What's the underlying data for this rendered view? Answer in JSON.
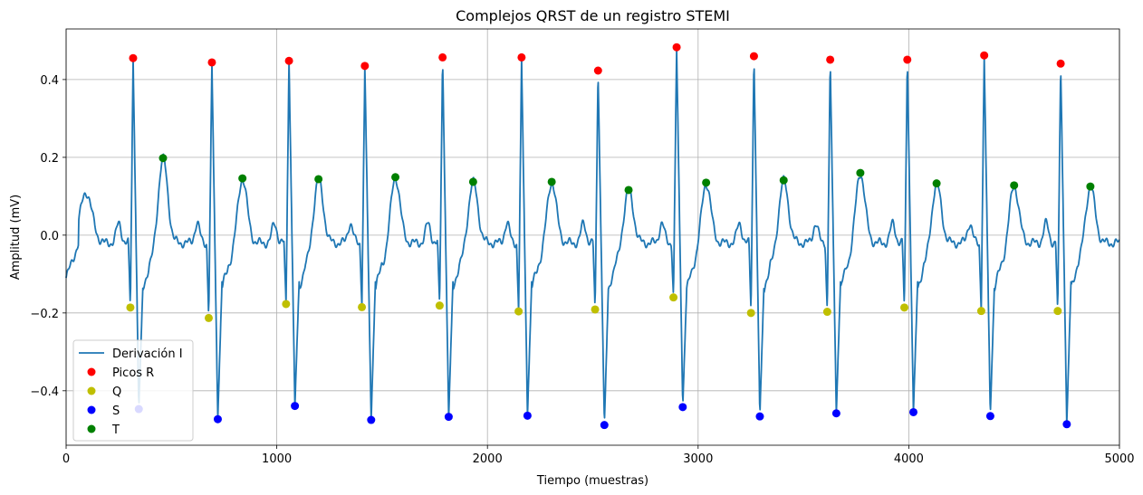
{
  "chart_data": {
    "type": "line",
    "title": "Complejos QRST de un registro STEMI",
    "xlabel": "Tiempo (muestras)",
    "ylabel": "Amplitud (mV)",
    "xlim": [
      0,
      5000
    ],
    "ylim": [
      -0.54,
      0.53
    ],
    "xticks": [
      0,
      1000,
      2000,
      3000,
      4000,
      5000
    ],
    "xtick_labels": [
      "0",
      "1000",
      "2000",
      "3000",
      "4000",
      "5000"
    ],
    "yticks": [
      -0.4,
      -0.2,
      0.0,
      0.2,
      0.4
    ],
    "ytick_labels": [
      "−0.4",
      "−0.2",
      "0.0",
      "0.2",
      "0.4"
    ],
    "grid": true,
    "legend_position": "lower-left",
    "colors": {
      "signal": "#1f77b4",
      "r": "#ff0000",
      "q": "#bfbf00",
      "s": "#0000ff",
      "t": "#008000"
    },
    "series": [
      {
        "name": "Derivación I",
        "kind": "line",
        "color": "#1f77b4"
      },
      {
        "name": "Picos R",
        "kind": "marker",
        "color": "#ff0000",
        "x": [
          318,
          692,
          1058,
          1418,
          1787,
          2162,
          2525,
          2898,
          3265,
          3627,
          3993,
          4358,
          4721
        ],
        "y": [
          0.455,
          0.444,
          0.448,
          0.435,
          0.457,
          0.457,
          0.423,
          0.483,
          0.46,
          0.451,
          0.451,
          0.462,
          0.441
        ]
      },
      {
        "name": "Q",
        "kind": "marker",
        "color": "#bfbf00",
        "x": [
          305,
          677,
          1044,
          1404,
          1773,
          2148,
          2511,
          2883,
          3251,
          3613,
          3979,
          4344,
          4707
        ],
        "y": [
          -0.186,
          -0.213,
          -0.177,
          -0.185,
          -0.181,
          -0.196,
          -0.191,
          -0.16,
          -0.2,
          -0.197,
          -0.186,
          -0.195,
          -0.195
        ]
      },
      {
        "name": "S",
        "kind": "marker",
        "color": "#0000ff",
        "x": [
          345,
          720,
          1086,
          1448,
          1816,
          2190,
          2555,
          2927,
          3293,
          3656,
          4022,
          4387,
          4750
        ],
        "y": [
          -0.447,
          -0.473,
          -0.439,
          -0.475,
          -0.467,
          -0.464,
          -0.488,
          -0.442,
          -0.466,
          -0.458,
          -0.455,
          -0.465,
          -0.486
        ]
      },
      {
        "name": "T",
        "kind": "marker",
        "color": "#008000",
        "x": [
          460,
          837,
          1198,
          1563,
          1932,
          2305,
          2670,
          3038,
          3406,
          3770,
          4132,
          4500,
          4862
        ],
        "y": [
          0.198,
          0.146,
          0.144,
          0.149,
          0.137,
          0.137,
          0.116,
          0.135,
          0.141,
          0.16,
          0.133,
          0.128,
          0.125
        ]
      }
    ]
  }
}
